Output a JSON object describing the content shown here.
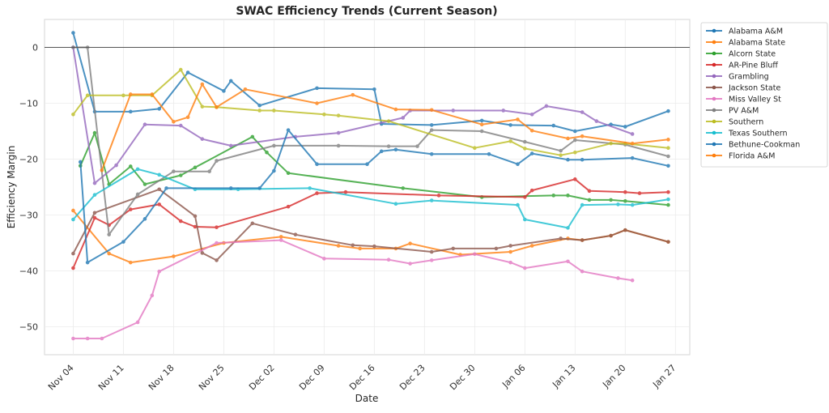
{
  "chart_data": {
    "type": "line",
    "title": "SWAC Efficiency Trends (Current Season)",
    "xlabel": "Date",
    "ylabel": "Efficiency Margin",
    "x_unit": "days since Nov 04",
    "xlim": [
      -4,
      86
    ],
    "ylim": [
      -55,
      5
    ],
    "x_ticks": [
      {
        "label": "Nov 04",
        "day": 0
      },
      {
        "label": "Nov 11",
        "day": 7
      },
      {
        "label": "Nov 18",
        "day": 14
      },
      {
        "label": "Nov 25",
        "day": 21
      },
      {
        "label": "Dec 02",
        "day": 28
      },
      {
        "label": "Dec 09",
        "day": 35
      },
      {
        "label": "Dec 16",
        "day": 42
      },
      {
        "label": "Dec 23",
        "day": 49
      },
      {
        "label": "Dec 30",
        "day": 56
      },
      {
        "label": "Jan 06",
        "day": 63
      },
      {
        "label": "Jan 13",
        "day": 70
      },
      {
        "label": "Jan 20",
        "day": 77
      },
      {
        "label": "Jan 27",
        "day": 84
      }
    ],
    "y_ticks": [
      0,
      -10,
      -20,
      -30,
      -40,
      -50
    ],
    "grid": true,
    "reference_line": 0,
    "legend_position": "outside-top-right",
    "series": [
      {
        "name": "Alabama A&M",
        "color": "#1f77b4",
        "points": [
          [
            0,
            2.6
          ],
          [
            3,
            -11.5
          ],
          [
            8,
            -11.5
          ],
          [
            12,
            -11
          ],
          [
            16,
            -4.5
          ],
          [
            21,
            -7.8
          ],
          [
            22,
            -6
          ],
          [
            26,
            -10.4
          ],
          [
            34,
            -7.3
          ],
          [
            42,
            -7.5
          ],
          [
            43,
            -13.7
          ],
          [
            50,
            -13.9
          ],
          [
            57,
            -13.1
          ],
          [
            61,
            -13.9
          ],
          [
            67,
            -14
          ],
          [
            70,
            -15
          ],
          [
            75,
            -13.8
          ],
          [
            77,
            -14.2
          ],
          [
            83,
            -11.4
          ]
        ]
      },
      {
        "name": "Alabama State",
        "color": "#ff7f0e",
        "points": [
          [
            0,
            -29.2
          ],
          [
            5,
            -36.9
          ],
          [
            8,
            -38.5
          ],
          [
            14,
            -37.4
          ],
          [
            21,
            -35
          ],
          [
            29,
            -33.9
          ],
          [
            37,
            -35.5
          ],
          [
            40,
            -36
          ],
          [
            45,
            -36
          ],
          [
            47,
            -35.1
          ],
          [
            54,
            -37.1
          ],
          [
            61,
            -36.6
          ],
          [
            64,
            -35.5
          ],
          [
            69,
            -34.2
          ],
          [
            71,
            -34.5
          ],
          [
            75,
            -33.7
          ],
          [
            77,
            -32.7
          ],
          [
            83,
            -34.8
          ]
        ]
      },
      {
        "name": "Alcorn State",
        "color": "#2ca02c",
        "points": [
          [
            1,
            -21.2
          ],
          [
            3,
            -15.3
          ],
          [
            5,
            -24.5
          ],
          [
            8,
            -21.3
          ],
          [
            10,
            -24.5
          ],
          [
            15,
            -22.9
          ],
          [
            17,
            -21.5
          ],
          [
            25,
            -16
          ],
          [
            27,
            -18.8
          ],
          [
            30,
            -22.5
          ],
          [
            46,
            -25.2
          ],
          [
            57,
            -26.8
          ],
          [
            67,
            -26.5
          ],
          [
            69,
            -26.5
          ],
          [
            72,
            -27.3
          ],
          [
            75,
            -27.3
          ],
          [
            77,
            -27.5
          ],
          [
            83,
            -28.2
          ]
        ]
      },
      {
        "name": "AR-Pine Bluff",
        "color": "#d62728",
        "points": [
          [
            0,
            -39.5
          ],
          [
            3,
            -30.5
          ],
          [
            5,
            -31.8
          ],
          [
            8,
            -29
          ],
          [
            12,
            -28.1
          ],
          [
            15,
            -31.1
          ],
          [
            17,
            -32.1
          ],
          [
            20,
            -32.2
          ],
          [
            30,
            -28.5
          ],
          [
            34,
            -26.1
          ],
          [
            38,
            -25.9
          ],
          [
            51,
            -26.5
          ],
          [
            63,
            -26.8
          ],
          [
            64,
            -25.6
          ],
          [
            70,
            -23.6
          ],
          [
            72,
            -25.7
          ],
          [
            77,
            -25.9
          ],
          [
            79,
            -26.1
          ],
          [
            83,
            -25.9
          ]
        ]
      },
      {
        "name": "Grambling",
        "color": "#9467bd",
        "points": [
          [
            0,
            0
          ],
          [
            3,
            -24.3
          ],
          [
            6,
            -21.1
          ],
          [
            10,
            -13.8
          ],
          [
            15,
            -14
          ],
          [
            18,
            -16.4
          ],
          [
            22,
            -17.6
          ],
          [
            31,
            -16
          ],
          [
            37,
            -15.3
          ],
          [
            46,
            -12.6
          ],
          [
            47,
            -11.3
          ],
          [
            53,
            -11.3
          ],
          [
            60,
            -11.3
          ],
          [
            64,
            -12
          ],
          [
            66,
            -10.5
          ],
          [
            71,
            -11.6
          ],
          [
            73,
            -13.2
          ],
          [
            78,
            -15.5
          ]
        ]
      },
      {
        "name": "Jackson State",
        "color": "#8c564b",
        "points": [
          [
            0,
            -36.9
          ],
          [
            3,
            -29.6
          ],
          [
            12,
            -25.4
          ],
          [
            17,
            -30.2
          ],
          [
            18,
            -36.8
          ],
          [
            20,
            -38.1
          ],
          [
            25,
            -31.5
          ],
          [
            31,
            -33.5
          ],
          [
            39,
            -35.4
          ],
          [
            42,
            -35.6
          ],
          [
            50,
            -36.6
          ],
          [
            53,
            -36
          ],
          [
            59,
            -36
          ],
          [
            61,
            -35.5
          ],
          [
            68,
            -34.2
          ],
          [
            71,
            -34.5
          ],
          [
            75,
            -33.7
          ],
          [
            77,
            -32.7
          ],
          [
            83,
            -34.8
          ]
        ]
      },
      {
        "name": "Miss Valley St",
        "color": "#e377c2",
        "points": [
          [
            0,
            -52.1
          ],
          [
            2,
            -52.1
          ],
          [
            4,
            -52.1
          ],
          [
            9,
            -49.2
          ],
          [
            11,
            -44.4
          ],
          [
            12,
            -40.1
          ],
          [
            20,
            -35
          ],
          [
            29,
            -34.5
          ],
          [
            35,
            -37.8
          ],
          [
            44,
            -38
          ],
          [
            47,
            -38.7
          ],
          [
            50,
            -38.1
          ],
          [
            56,
            -37
          ],
          [
            61,
            -38.5
          ],
          [
            63,
            -39.5
          ],
          [
            69,
            -38.3
          ],
          [
            71,
            -40.1
          ],
          [
            76,
            -41.3
          ],
          [
            78,
            -41.7
          ]
        ]
      },
      {
        "name": "PV A&M",
        "color": "#7f7f7f",
        "points": [
          [
            0,
            0
          ],
          [
            2,
            0
          ],
          [
            5,
            -33.5
          ],
          [
            9,
            -26.3
          ],
          [
            14,
            -22.2
          ],
          [
            19,
            -22.2
          ],
          [
            20,
            -20.3
          ],
          [
            28,
            -17.6
          ],
          [
            37,
            -17.6
          ],
          [
            44,
            -17.7
          ],
          [
            48,
            -17.7
          ],
          [
            50,
            -14.8
          ],
          [
            57,
            -15
          ],
          [
            63,
            -16.9
          ],
          [
            68,
            -18.5
          ],
          [
            70,
            -16.6
          ],
          [
            77,
            -17.4
          ],
          [
            83,
            -19.5
          ]
        ]
      },
      {
        "name": "Southern",
        "color": "#bcbd22",
        "points": [
          [
            0,
            -12
          ],
          [
            2,
            -8.6
          ],
          [
            7,
            -8.6
          ],
          [
            11,
            -8.6
          ],
          [
            15,
            -4
          ],
          [
            18,
            -10.6
          ],
          [
            20,
            -10.7
          ],
          [
            26,
            -11.3
          ],
          [
            28,
            -11.3
          ],
          [
            35,
            -12
          ],
          [
            37,
            -12.2
          ],
          [
            44,
            -13.2
          ],
          [
            56,
            -18
          ],
          [
            61,
            -16.8
          ],
          [
            63,
            -18.1
          ],
          [
            68,
            -19.3
          ],
          [
            70,
            -18.8
          ],
          [
            75,
            -17.2
          ],
          [
            77,
            -17.2
          ],
          [
            83,
            -18
          ]
        ]
      },
      {
        "name": "Texas Southern",
        "color": "#17becf",
        "points": [
          [
            0,
            -30.8
          ],
          [
            3,
            -26.4
          ],
          [
            9,
            -21.8
          ],
          [
            12,
            -22.8
          ],
          [
            17,
            -25.4
          ],
          [
            23,
            -25.4
          ],
          [
            33,
            -25.2
          ],
          [
            45,
            -28
          ],
          [
            50,
            -27.4
          ],
          [
            62,
            -28.2
          ],
          [
            63,
            -30.8
          ],
          [
            69,
            -32.3
          ],
          [
            71,
            -28.2
          ],
          [
            76,
            -28.1
          ],
          [
            78,
            -28.2
          ],
          [
            83,
            -27.2
          ]
        ]
      },
      {
        "name": "Bethune-Cookman",
        "color": "#1f77b4",
        "points": [
          [
            1,
            -20.5
          ],
          [
            2,
            -38.5
          ],
          [
            7,
            -34.8
          ],
          [
            10,
            -30.7
          ],
          [
            13,
            -25.2
          ],
          [
            22,
            -25.2
          ],
          [
            26,
            -25.2
          ],
          [
            28,
            -22.1
          ],
          [
            30,
            -14.8
          ],
          [
            34,
            -20.9
          ],
          [
            41,
            -20.9
          ],
          [
            43,
            -18.6
          ],
          [
            45,
            -18.3
          ],
          [
            50,
            -19.1
          ],
          [
            58,
            -19.1
          ],
          [
            62,
            -20.9
          ],
          [
            64,
            -19
          ],
          [
            69,
            -20.1
          ],
          [
            71,
            -20.1
          ],
          [
            78,
            -19.8
          ],
          [
            83,
            -21.2
          ]
        ]
      },
      {
        "name": "Florida A&M",
        "color": "#ff7f0e",
        "points": [
          [
            4,
            -22
          ],
          [
            8,
            -8.4
          ],
          [
            11,
            -8.4
          ],
          [
            14,
            -13.3
          ],
          [
            16,
            -12.5
          ],
          [
            18,
            -6.6
          ],
          [
            20,
            -10.7
          ],
          [
            24,
            -7.5
          ],
          [
            34,
            -10
          ],
          [
            39,
            -8.5
          ],
          [
            45,
            -11.1
          ],
          [
            50,
            -11.2
          ],
          [
            57,
            -13.8
          ],
          [
            62,
            -12.9
          ],
          [
            64,
            -14.9
          ],
          [
            69,
            -16.3
          ],
          [
            71,
            -15.9
          ],
          [
            78,
            -17.2
          ],
          [
            83,
            -16.5
          ]
        ]
      }
    ]
  }
}
